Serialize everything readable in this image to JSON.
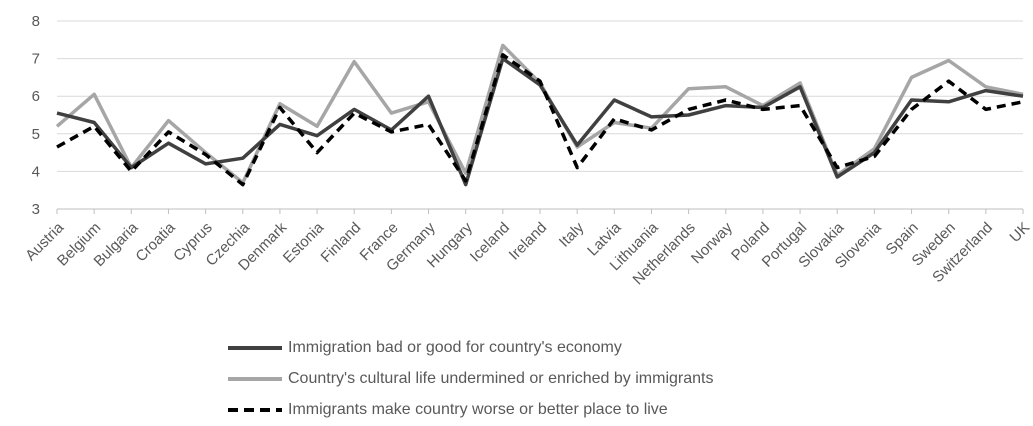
{
  "chart_data": {
    "type": "line",
    "title": "",
    "xlabel": "",
    "ylabel": "",
    "ylim": [
      3,
      8
    ],
    "yticks": [
      3,
      4,
      5,
      6,
      7,
      8
    ],
    "grid": "horizontal",
    "legend_position": "bottom",
    "categories": [
      "Austria",
      "Belgium",
      "Bulgaria",
      "Croatia",
      "Cyprus",
      "Czechia",
      "Denmark",
      "Estonia",
      "Finland",
      "France",
      "Germany",
      "Hungary",
      "Iceland",
      "Ireland",
      "Italy",
      "Latvia",
      "Lithuania",
      "Netherlands",
      "Norway",
      "Poland",
      "Portugal",
      "Slovakia",
      "Slovenia",
      "Spain",
      "Sweden",
      "Switzerland",
      "UK"
    ],
    "series": [
      {
        "name": "Immigration bad or good for country's economy",
        "color": "#404040",
        "dash": "solid",
        "values": [
          5.55,
          5.3,
          4.1,
          4.75,
          4.2,
          4.35,
          5.25,
          4.95,
          5.65,
          5.1,
          6.0,
          3.65,
          7.0,
          6.3,
          4.7,
          5.9,
          5.45,
          5.5,
          5.75,
          5.7,
          6.25,
          3.85,
          4.5,
          5.9,
          5.85,
          6.15,
          6.0
        ]
      },
      {
        "name": "Country's cultural life undermined or enriched by immigrants",
        "color": "#a6a6a6",
        "dash": "solid",
        "values": [
          5.2,
          6.05,
          4.1,
          5.35,
          4.5,
          3.7,
          5.8,
          5.2,
          6.92,
          5.55,
          5.85,
          3.95,
          7.35,
          6.35,
          4.65,
          5.3,
          5.15,
          6.2,
          6.25,
          5.75,
          6.35,
          3.9,
          4.6,
          6.5,
          6.95,
          6.25,
          6.05
        ]
      },
      {
        "name": "Immigrants make country worse or better place to live",
        "color": "#000000",
        "dash": "dashed",
        "values": [
          4.65,
          5.2,
          4.0,
          5.05,
          4.45,
          3.65,
          5.7,
          4.5,
          5.55,
          5.05,
          5.25,
          3.75,
          7.1,
          6.4,
          4.1,
          5.4,
          5.1,
          5.65,
          5.9,
          5.65,
          5.75,
          4.1,
          4.4,
          5.65,
          6.4,
          5.65,
          5.85
        ]
      }
    ]
  }
}
